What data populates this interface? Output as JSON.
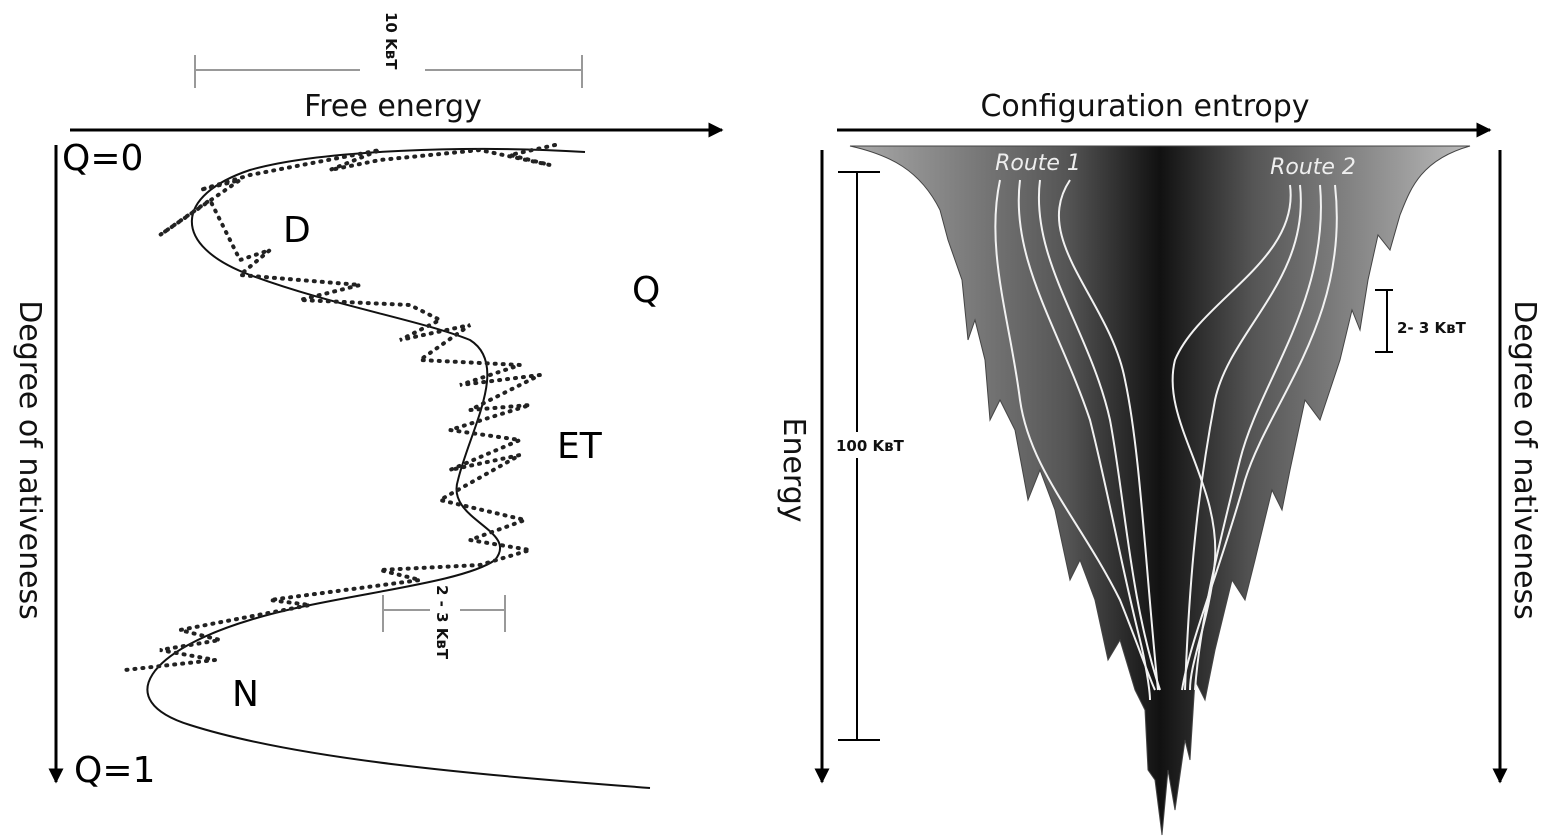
{
  "left_panel": {
    "scale_label": "10 KʙT",
    "x_axis_label": "Free energy",
    "q_start": "Q=0",
    "q_end": "Q=1",
    "y_axis_label": "Degree of nativeness",
    "state_labels": [
      "D",
      "Q",
      "ET",
      "N"
    ],
    "barrier_label": "2 - 3 KʙT"
  },
  "right_panel": {
    "x_axis_label": "Configuration entropy",
    "routes": [
      "Route 1",
      "Route 2"
    ],
    "y_axis_label": "Energy",
    "depth_label": "100 KʙT",
    "barrier_label": "2- 3 KʙT",
    "right_axis_label": "Degree of nativeness"
  }
}
